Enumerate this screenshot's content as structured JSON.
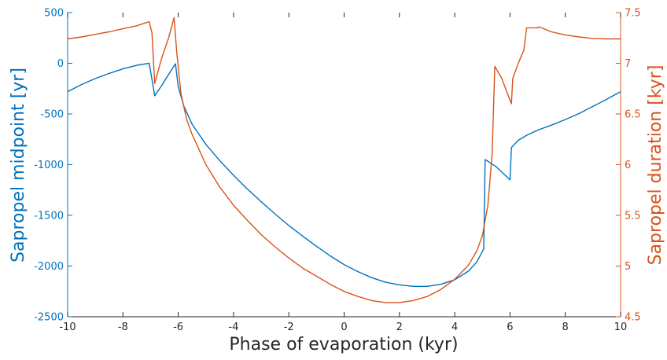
{
  "chart_data": {
    "type": "line",
    "xlabel": "Phase of evaporation (kyr)",
    "xlim": [
      -10,
      10
    ],
    "xticks": [
      "-10",
      "-8",
      "-6",
      "-4",
      "-2",
      "0",
      "2",
      "4",
      "6",
      "8",
      "10"
    ],
    "ylabel_left": "Sapropel midpoint [yr]",
    "ylim_left": [
      -2500,
      500
    ],
    "yticks_left": [
      "500",
      "0",
      "-500",
      "-1000",
      "-1500",
      "-2000",
      "-2500"
    ],
    "ylabel_right": "Sapropel duration [kyr]",
    "ylim_right": [
      4.5,
      7.5
    ],
    "yticks_right": [
      "7.5",
      "7",
      "6.5",
      "6",
      "5.5",
      "5",
      "4.5"
    ],
    "grid": false,
    "colors": {
      "left": "#0072BD",
      "right": "#D95319",
      "axis_left": "#0072BD",
      "axis_right": "#D95319"
    },
    "series": [
      {
        "axis": "left",
        "points": [
          [
            -10,
            -280
          ],
          [
            -9.5,
            -210
          ],
          [
            -9,
            -150
          ],
          [
            -8.5,
            -100
          ],
          [
            -8,
            -55
          ],
          [
            -7.5,
            -20
          ],
          [
            -7.05,
            0
          ],
          [
            -6.85,
            -320
          ],
          [
            -6.6,
            -220
          ],
          [
            -6.35,
            -110
          ],
          [
            -6.1,
            -5
          ],
          [
            -6.0,
            -230
          ],
          [
            -5.8,
            -420
          ],
          [
            -5.5,
            -600
          ],
          [
            -5,
            -800
          ],
          [
            -4.5,
            -960
          ],
          [
            -4,
            -1105
          ],
          [
            -3.5,
            -1240
          ],
          [
            -3,
            -1365
          ],
          [
            -2.5,
            -1485
          ],
          [
            -2,
            -1600
          ],
          [
            -1.5,
            -1705
          ],
          [
            -1,
            -1805
          ],
          [
            -0.5,
            -1900
          ],
          [
            0,
            -1985
          ],
          [
            0.5,
            -2055
          ],
          [
            1,
            -2115
          ],
          [
            1.5,
            -2160
          ],
          [
            2,
            -2185
          ],
          [
            2.5,
            -2200
          ],
          [
            3,
            -2200
          ],
          [
            3.5,
            -2180
          ],
          [
            4,
            -2135
          ],
          [
            4.5,
            -2050
          ],
          [
            4.8,
            -1960
          ],
          [
            5.05,
            -1830
          ],
          [
            5.1,
            -950
          ],
          [
            5.5,
            -1020
          ],
          [
            6.0,
            -1150
          ],
          [
            6.05,
            -830
          ],
          [
            6.3,
            -760
          ],
          [
            6.6,
            -710
          ],
          [
            7,
            -660
          ],
          [
            7.5,
            -610
          ],
          [
            8,
            -555
          ],
          [
            8.5,
            -495
          ],
          [
            9,
            -425
          ],
          [
            9.5,
            -355
          ],
          [
            10,
            -280
          ]
        ]
      },
      {
        "axis": "right",
        "points": [
          [
            -10,
            7.24
          ],
          [
            -9.5,
            7.26
          ],
          [
            -9,
            7.285
          ],
          [
            -8.5,
            7.31
          ],
          [
            -8,
            7.34
          ],
          [
            -7.5,
            7.37
          ],
          [
            -7.05,
            7.41
          ],
          [
            -6.95,
            7.3
          ],
          [
            -6.85,
            6.8
          ],
          [
            -6.6,
            7.05
          ],
          [
            -6.35,
            7.25
          ],
          [
            -6.15,
            7.45
          ],
          [
            -6.05,
            7.1
          ],
          [
            -5.9,
            6.7
          ],
          [
            -5.7,
            6.45
          ],
          [
            -5.5,
            6.3
          ],
          [
            -5,
            6.0
          ],
          [
            -4.5,
            5.78
          ],
          [
            -4,
            5.6
          ],
          [
            -3.5,
            5.45
          ],
          [
            -3,
            5.31
          ],
          [
            -2.5,
            5.19
          ],
          [
            -2,
            5.08
          ],
          [
            -1.5,
            4.98
          ],
          [
            -1,
            4.9
          ],
          [
            -0.5,
            4.82
          ],
          [
            0,
            4.75
          ],
          [
            0.5,
            4.7
          ],
          [
            1,
            4.66
          ],
          [
            1.5,
            4.64
          ],
          [
            2,
            4.64
          ],
          [
            2.5,
            4.66
          ],
          [
            3,
            4.7
          ],
          [
            3.5,
            4.77
          ],
          [
            4,
            4.87
          ],
          [
            4.5,
            5.01
          ],
          [
            4.8,
            5.15
          ],
          [
            5.0,
            5.3
          ],
          [
            5.2,
            5.6
          ],
          [
            5.35,
            6.1
          ],
          [
            5.45,
            6.97
          ],
          [
            5.7,
            6.85
          ],
          [
            6.05,
            6.6
          ],
          [
            6.1,
            6.85
          ],
          [
            6.3,
            7.0
          ],
          [
            6.5,
            7.13
          ],
          [
            6.6,
            7.35
          ],
          [
            7.0,
            7.35
          ],
          [
            7.05,
            7.36
          ],
          [
            7.5,
            7.31
          ],
          [
            8,
            7.28
          ],
          [
            8.5,
            7.26
          ],
          [
            9,
            7.245
          ],
          [
            9.5,
            7.24
          ],
          [
            10,
            7.24
          ]
        ]
      }
    ]
  }
}
